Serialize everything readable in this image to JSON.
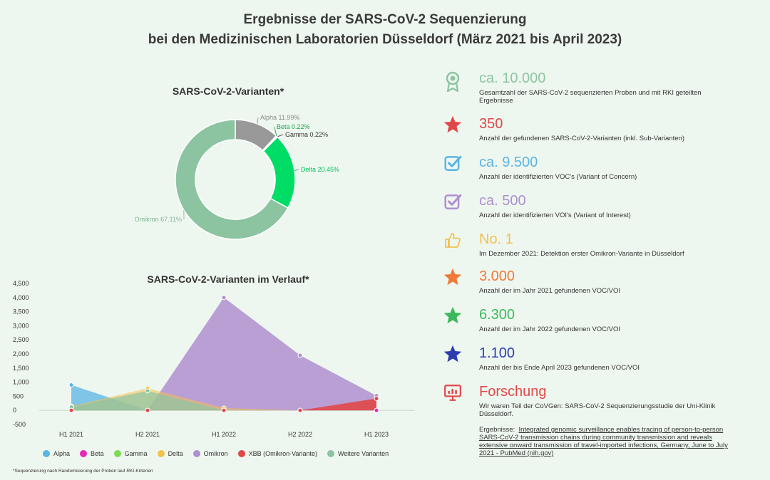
{
  "title_line1": "Ergebnisse der SARS-CoV-2 Sequenzierung",
  "title_line2": "bei den Medizinischen Laboratorien Düsseldorf (März 2021 bis April 2023)",
  "chart_data": [
    {
      "type": "pie",
      "title": "SARS-CoV-2-Varianten*",
      "style": "donut",
      "slices": [
        {
          "name": "Alpha",
          "value": 11.99,
          "label": "Alpha 11.99%",
          "color": "#999999"
        },
        {
          "name": "Beta",
          "value": 0.22,
          "label": "Beta 0.22%",
          "color": "#1aa34a"
        },
        {
          "name": "Gamma",
          "value": 0.22,
          "label": "Gamma 0.22%",
          "color": "#444444"
        },
        {
          "name": "Delta",
          "value": 20.45,
          "label": "Delta 20.45%",
          "color": "#00dd66"
        },
        {
          "name": "Omikron",
          "value": 67.11,
          "label": "Omikron 67.11%",
          "color": "#8cc4a2"
        }
      ]
    },
    {
      "type": "area",
      "title": "SARS-CoV-2-Varianten im Verlauf*",
      "categories": [
        "H1 2021",
        "H2 2021",
        "H1 2022",
        "H2 2022",
        "H1 2023"
      ],
      "ylim": [
        -500,
        4500
      ],
      "yticks": [
        -500,
        0,
        500,
        1000,
        1500,
        2000,
        2500,
        3000,
        3500,
        4000,
        4500
      ],
      "ytick_labels": [
        "-500",
        "0",
        "500",
        "1,000",
        "1,500",
        "2,000",
        "2,500",
        "3,000",
        "3,500",
        "4,000",
        "4,500"
      ],
      "legend_position": "bottom",
      "series": [
        {
          "name": "Alpha",
          "color": "#5ab4e5",
          "values": [
            900,
            0,
            0,
            0,
            0
          ]
        },
        {
          "name": "Beta",
          "color": "#e52ab8",
          "values": [
            0,
            0,
            0,
            0,
            0
          ]
        },
        {
          "name": "Gamma",
          "color": "#7ed957",
          "values": [
            0,
            0,
            0,
            0,
            0
          ]
        },
        {
          "name": "Delta",
          "color": "#f2c14e",
          "values": [
            150,
            780,
            80,
            0,
            0
          ]
        },
        {
          "name": "Omikron",
          "color": "#b08fd0",
          "values": [
            0,
            0,
            4000,
            1950,
            520
          ]
        },
        {
          "name": "XBB (Omikron-Variante)",
          "color": "#e04848",
          "values": [
            0,
            0,
            0,
            0,
            420
          ]
        },
        {
          "name": "Weitere Varianten",
          "color": "#8cc4a2",
          "values": [
            120,
            690,
            0,
            0,
            0
          ]
        }
      ]
    }
  ],
  "footnote": "*Sequenzierung nach Randomisierung der Proben laut RKI-Kriterien",
  "stats": [
    {
      "icon": "award-icon",
      "color": "#8cc4a2",
      "value": "ca. 10.000",
      "desc": "Gesamtzahl der SARS-CoV-2 sequenzierten Proben und mit RKI geteilten Ergebnisse"
    },
    {
      "icon": "star-icon",
      "color": "#e04848",
      "value": "350",
      "desc": "Anzahl der gefundenen SARS-CoV-2-Varianten (inkl. Sub-Varianten)"
    },
    {
      "icon": "checkbox-icon",
      "color": "#5ab4e5",
      "value": "ca. 9.500",
      "desc": "Anzahl der identifizierten VOC's (Variant of Concern)"
    },
    {
      "icon": "checkbox-icon",
      "color": "#b08fd0",
      "value": "ca. 500",
      "desc": "Anzahl der identifizierten VOI's (Variant of Interest)"
    },
    {
      "icon": "thumbs-up-icon",
      "color": "#f2c14e",
      "value": "No. 1",
      "desc": "Im Dezember 2021: Detektion erster Omikron-Variante in Düsseldorf"
    },
    {
      "icon": "star-icon",
      "color": "#f07a3a",
      "value": "3.000",
      "desc": "Anzahl der im Jahr 2021 gefundenen VOC/VOI"
    },
    {
      "icon": "star-icon",
      "color": "#3cb85c",
      "value": "6.300",
      "desc": "Anzahl der im Jahr 2022 gefundenen VOC/VOI"
    },
    {
      "icon": "star-icon",
      "color": "#2b3db0",
      "value": "1.100",
      "desc": "Anzahl der bis Ende April 2023 gefundenen VOC/VOI"
    },
    {
      "icon": "presentation-icon",
      "color": "#e04848",
      "value": "Forschung",
      "desc": "Wir waren Teil der CoVGen: SARS-CoV-2 Sequenzierungsstudie der Uni-Klinik Düsseldorf."
    }
  ],
  "ergebnisse": {
    "label": "Ergebnisse:",
    "link_text": "Integrated genomic surveillance enables tracing of person-to-person SARS-CoV-2 transmission chains during community transmission and reveals extensive onward transmission of travel-imported infections, Germany, June to July 2021 - PubMed (nih.gov)"
  }
}
